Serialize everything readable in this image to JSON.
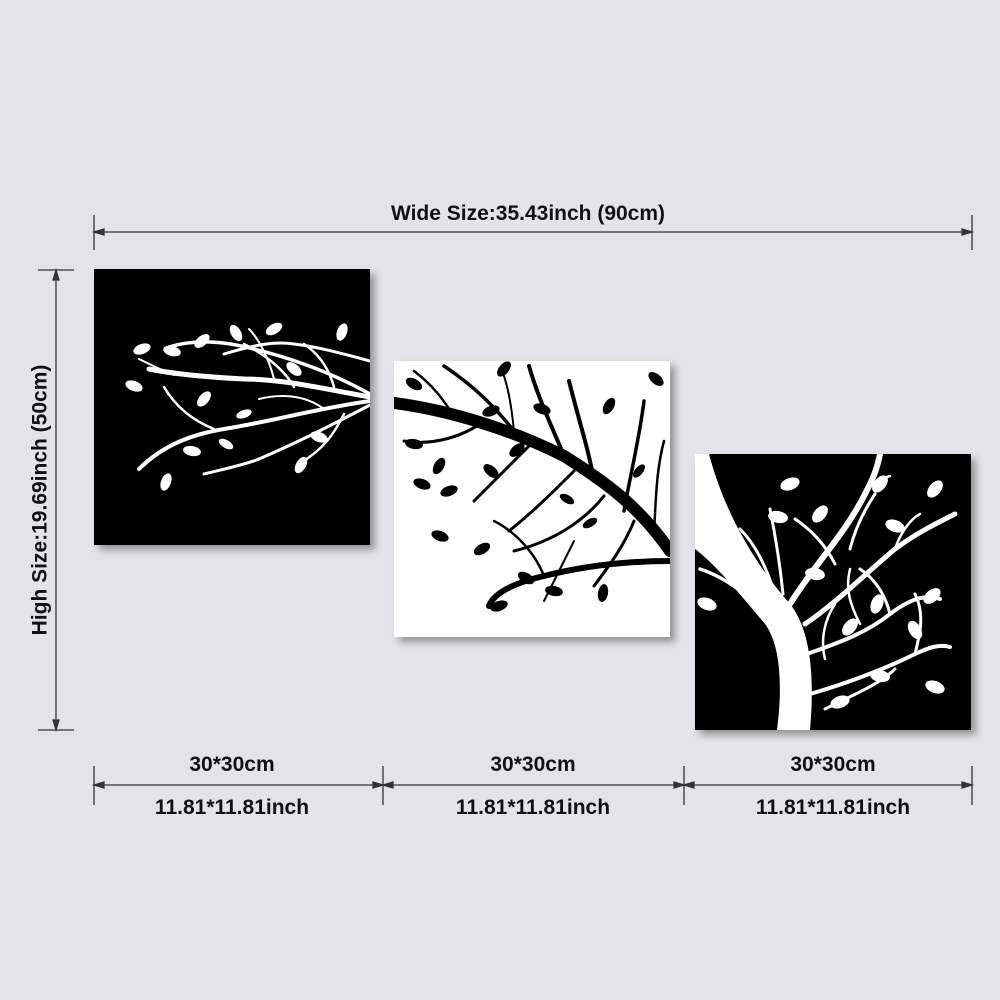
{
  "dimensions": {
    "wide_label": "Wide Size:35.43inch (90cm)",
    "high_label": "High Size:19.69inch (50cm)",
    "panels": [
      {
        "cm": "30*30cm",
        "inch": "11.81*11.81inch"
      },
      {
        "cm": "30*30cm",
        "inch": "11.81*11.81inch"
      },
      {
        "cm": "30*30cm",
        "inch": "11.81*11.81inch"
      }
    ]
  },
  "colors": {
    "background": "#e4e4e8",
    "dark_panel": "#000000",
    "light_panel": "#ffffff",
    "line": "#222222"
  },
  "artwork": [
    {
      "name": "white-branch-on-black"
    },
    {
      "name": "black-branch-on-white"
    },
    {
      "name": "white-tree-on-black"
    }
  ]
}
